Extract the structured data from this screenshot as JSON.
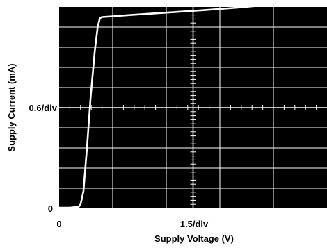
{
  "chart_data": {
    "type": "line",
    "title": "",
    "xlabel": "Supply Voltage (V)",
    "ylabel": "Supply Current (mA)",
    "x_tick_labels": {
      "origin": "0",
      "scale": "1.5/div"
    },
    "y_tick_labels": {
      "origin": "0",
      "scale": "0.6/div"
    },
    "x_divisions": 5,
    "y_divisions": 10,
    "x_units_per_div": 1.5,
    "y_units_per_div": 0.6,
    "xlim": [
      0,
      7.5
    ],
    "ylim": [
      0,
      6
    ],
    "grid": true,
    "colors": {
      "background": "#000000",
      "grid": "#ffffff",
      "trace": "#ffffff"
    },
    "series": [
      {
        "x": [
          0,
          0.3,
          0.55,
          0.6,
          0.68,
          0.78,
          0.88,
          1.0,
          1.08,
          1.14,
          1.2,
          1.5,
          2.0,
          3.0,
          4.0,
          5.0,
          6.0,
          7.0,
          7.5
        ],
        "y": [
          0.02,
          0.02,
          0.05,
          0.12,
          0.5,
          1.8,
          3.3,
          4.7,
          5.4,
          5.66,
          5.7,
          5.72,
          5.76,
          5.83,
          5.9,
          5.98,
          6.08,
          6.2,
          6.26
        ]
      }
    ]
  }
}
